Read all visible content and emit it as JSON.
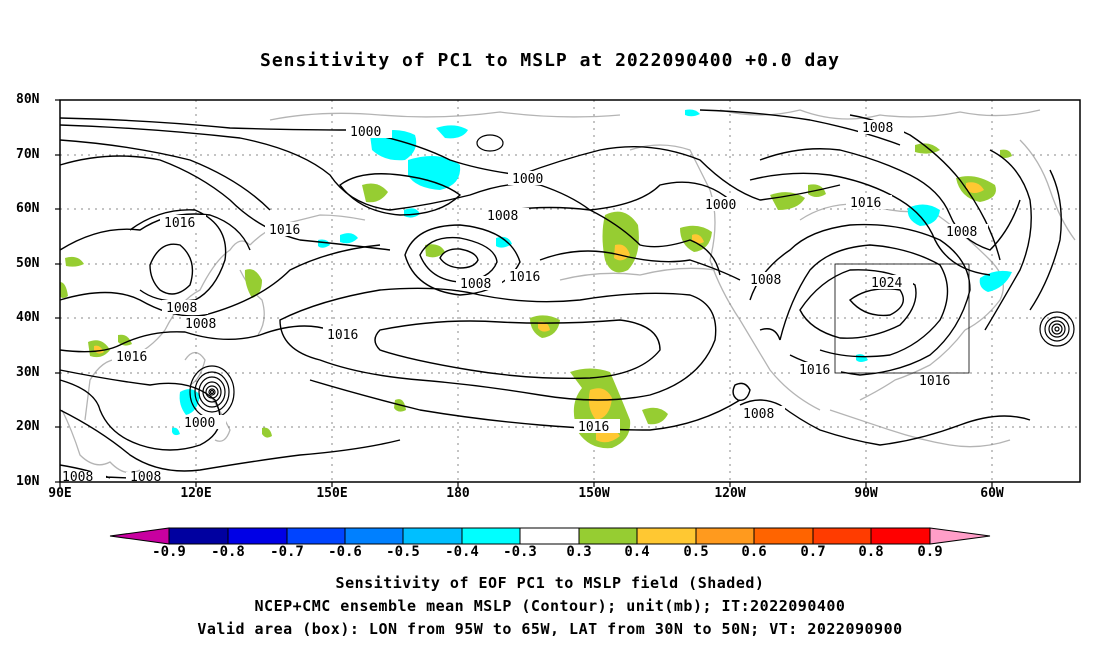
{
  "title": "Sensitivity of PC1 to MSLP at 2022090400 +0.0 day",
  "lat_labels": [
    "80N",
    "70N",
    "60N",
    "50N",
    "40N",
    "30N",
    "20N",
    "10N"
  ],
  "lon_labels": [
    "90E",
    "120E",
    "150E",
    "180",
    "150W",
    "120W",
    "90W",
    "60W"
  ],
  "contour_labels": [
    "1000",
    "1000",
    "1000",
    "1008",
    "1008",
    "1016",
    "1016",
    "1016",
    "1008",
    "1008",
    "1016",
    "1016",
    "1008",
    "1024",
    "1016",
    "1016",
    "1008",
    "1016",
    "1008",
    "1008",
    "1000",
    "1008",
    "1016"
  ],
  "colorbar": {
    "labels": [
      "-0.9",
      "-0.8",
      "-0.7",
      "-0.6",
      "-0.5",
      "-0.4",
      "-0.3",
      "0.3",
      "0.4",
      "0.5",
      "0.6",
      "0.7",
      "0.8",
      "0.9"
    ],
    "colors": [
      "#0000a0",
      "#0000e6",
      "#0044ff",
      "#0080ff",
      "#00bfff",
      "#00ffff",
      "#ffffff",
      "#96cd32",
      "#ffc832",
      "#ff9a1e",
      "#ff6400",
      "#ff3c00",
      "#ff0000"
    ],
    "low_arrow_color": "#c800a0",
    "high_arrow_color": "#ff9ec8"
  },
  "captions": [
    "Sensitivity of EOF PC1 to MSLP field (Shaded)",
    "NCEP+CMC ensemble mean MSLP (Contour); unit(mb); IT:2022090400",
    "Valid area (box): LON from 95W to 65W, LAT from 30N to 50N; VT: 2022090900"
  ],
  "colors": {
    "contour": "#000000",
    "coastline": "#b4b4b4",
    "grid": "#888888",
    "positive_shade": "#96cd32",
    "negative_shade": "#00ffff"
  }
}
